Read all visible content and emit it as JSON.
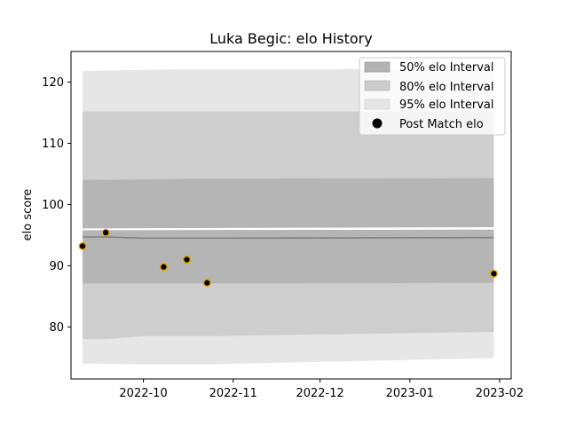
{
  "chart_data": {
    "type": "line",
    "title": "Luka Begic: elo History",
    "xlabel": "",
    "ylabel": "elo score",
    "xlim": [
      "2022-09-06",
      "2023-02-05"
    ],
    "ylim": [
      71.5,
      125
    ],
    "x_ticks": [
      "2022-10-01",
      "2022-11-01",
      "2022-12-01",
      "2023-01-01",
      "2023-02-01"
    ],
    "x_tick_labels": [
      "2022-10",
      "2022-11",
      "2022-12",
      "2023-01",
      "2023-02"
    ],
    "y_ticks": [
      80,
      90,
      100,
      110,
      120
    ],
    "grid": false,
    "legend_position": "top-right",
    "colors": {
      "band_50": "#b3b3b3",
      "band_80": "#cccccc",
      "band_95": "#e5e5e5",
      "mean_line": "#808080",
      "point_fill": "#000000",
      "point_edge": "#e6a000"
    },
    "bands": [
      {
        "name": "95% elo Interval",
        "x": [
          "2022-09-10",
          "2022-10-01",
          "2022-10-15",
          "2022-10-25",
          "2022-12-01",
          "2023-01-30"
        ],
        "lower": [
          74.0,
          73.9,
          73.9,
          73.9,
          74.3,
          74.9
        ],
        "upper": [
          121.8,
          122.0,
          122.1,
          122.1,
          122.1,
          122.2
        ]
      },
      {
        "name": "80% elo Interval",
        "x": [
          "2022-09-10",
          "2022-09-18",
          "2022-10-01",
          "2022-10-15",
          "2022-10-25",
          "2023-01-30"
        ],
        "lower": [
          78.0,
          78.0,
          78.5,
          78.5,
          78.5,
          79.2
        ],
        "upper": [
          115.2,
          115.2,
          115.2,
          115.2,
          115.2,
          115.2
        ]
      },
      {
        "name": "50% elo Interval",
        "x": [
          "2022-09-10",
          "2022-10-01",
          "2022-10-15",
          "2022-10-25",
          "2023-01-30"
        ],
        "lower": [
          87.1,
          87.1,
          87.1,
          87.1,
          87.2
        ],
        "upper": [
          104.0,
          104.1,
          104.2,
          104.2,
          104.3
        ]
      }
    ],
    "mean_line": {
      "x": [
        "2022-09-10",
        "2022-09-18",
        "2022-10-01",
        "2022-10-25",
        "2023-01-30"
      ],
      "y": [
        94.7,
        94.7,
        94.5,
        94.5,
        94.6
      ]
    },
    "gap_band": {
      "x": [
        "2022-09-10",
        "2023-01-30"
      ],
      "lower": [
        95.8,
        95.9
      ],
      "upper": [
        96.1,
        96.3
      ]
    },
    "series": [
      {
        "name": "Post Match elo",
        "x": [
          "2022-09-10",
          "2022-09-18",
          "2022-10-08",
          "2022-10-16",
          "2022-10-23",
          "2023-01-30"
        ],
        "y": [
          93.2,
          95.4,
          89.8,
          91.0,
          87.2,
          88.7
        ]
      }
    ]
  }
}
